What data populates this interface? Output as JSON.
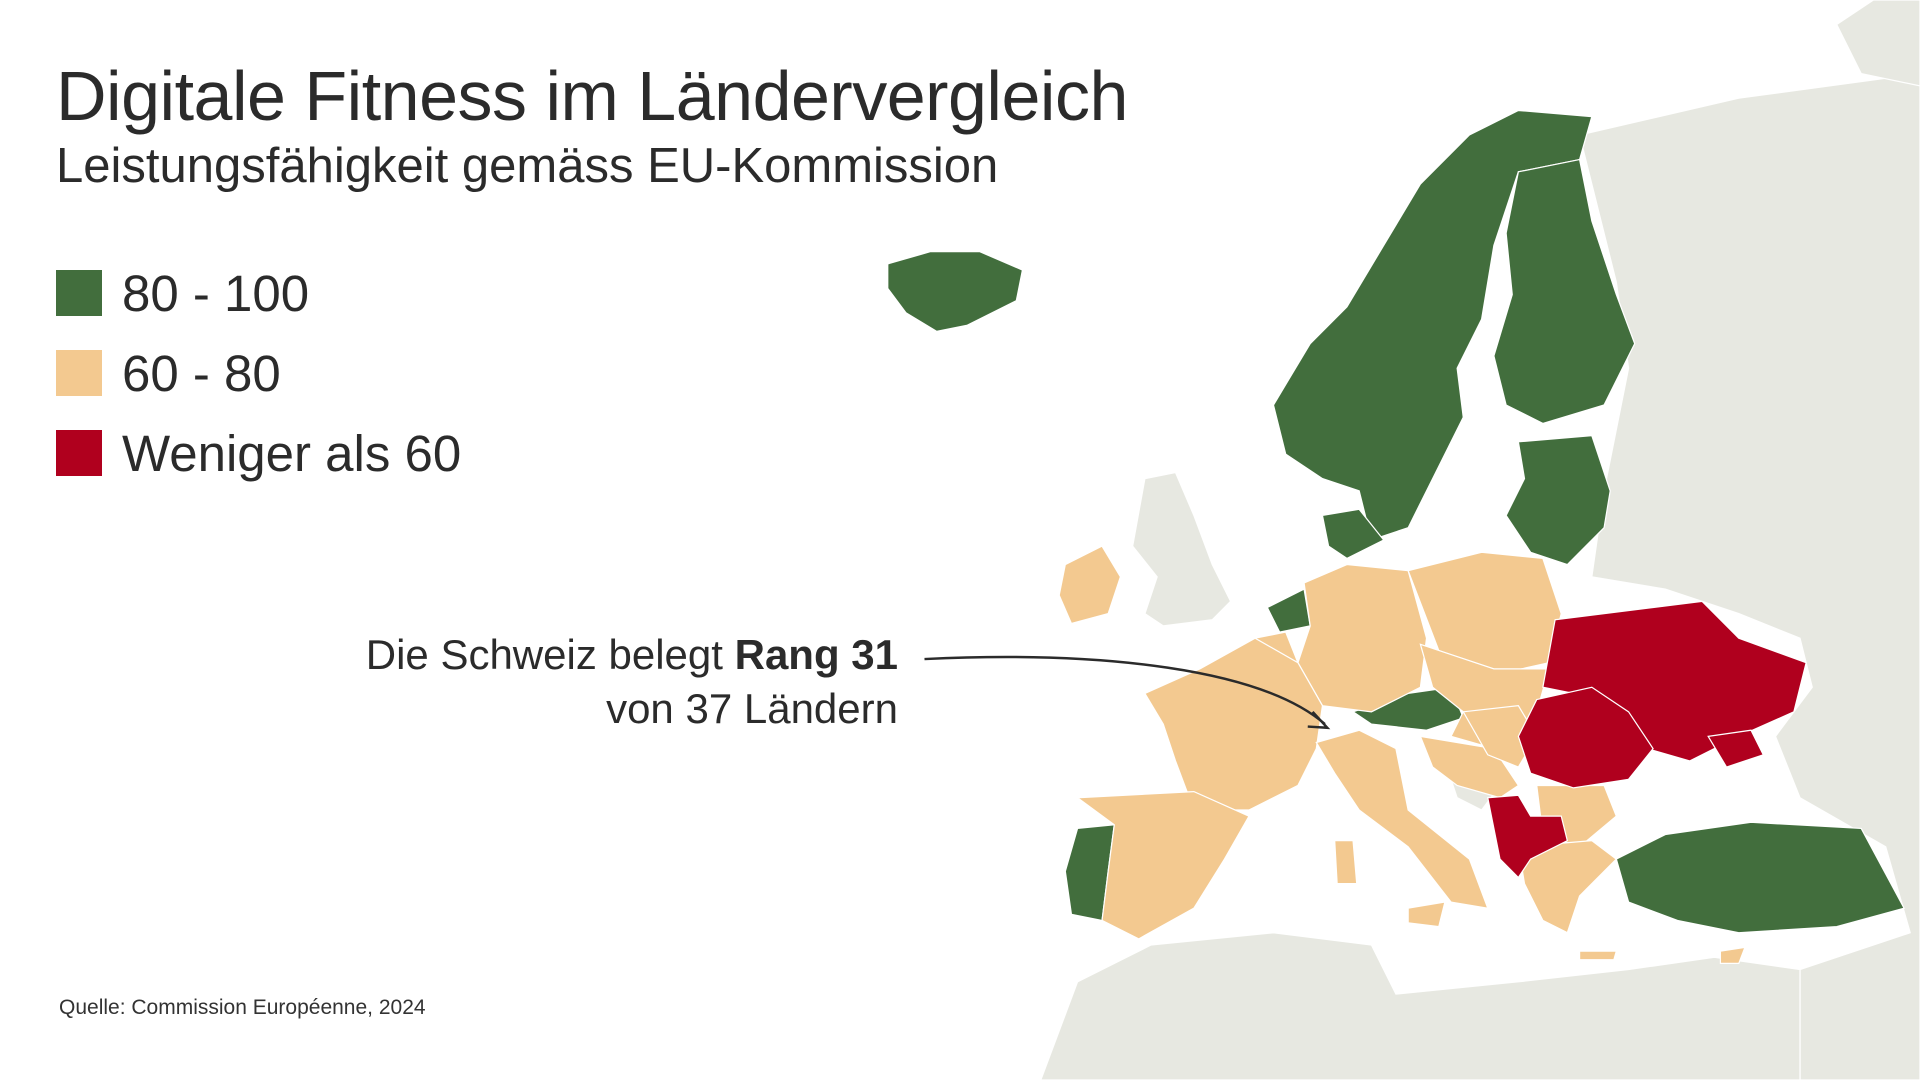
{
  "title": "Digitale Fitness im Ländervergleich",
  "subtitle": "Leistungsfähigkeit gemäss EU-Kommission",
  "legend": [
    {
      "label": "80 - 100",
      "color": "#426e3d"
    },
    {
      "label": "60 - 80",
      "color": "#f3c990"
    },
    {
      "label": "Weniger als 60",
      "color": "#b0001e"
    }
  ],
  "annotation": {
    "text_before": "Die Schweiz belegt ",
    "text_bold": "Rang 31",
    "line2": "von 37 Ländern"
  },
  "source": "Quelle: Commission Européenne, 2024",
  "colors": {
    "land_other": "#e7e8e1",
    "sea": "#ffffff",
    "border": "#ffffff",
    "text": "#2b2b2b"
  }
}
